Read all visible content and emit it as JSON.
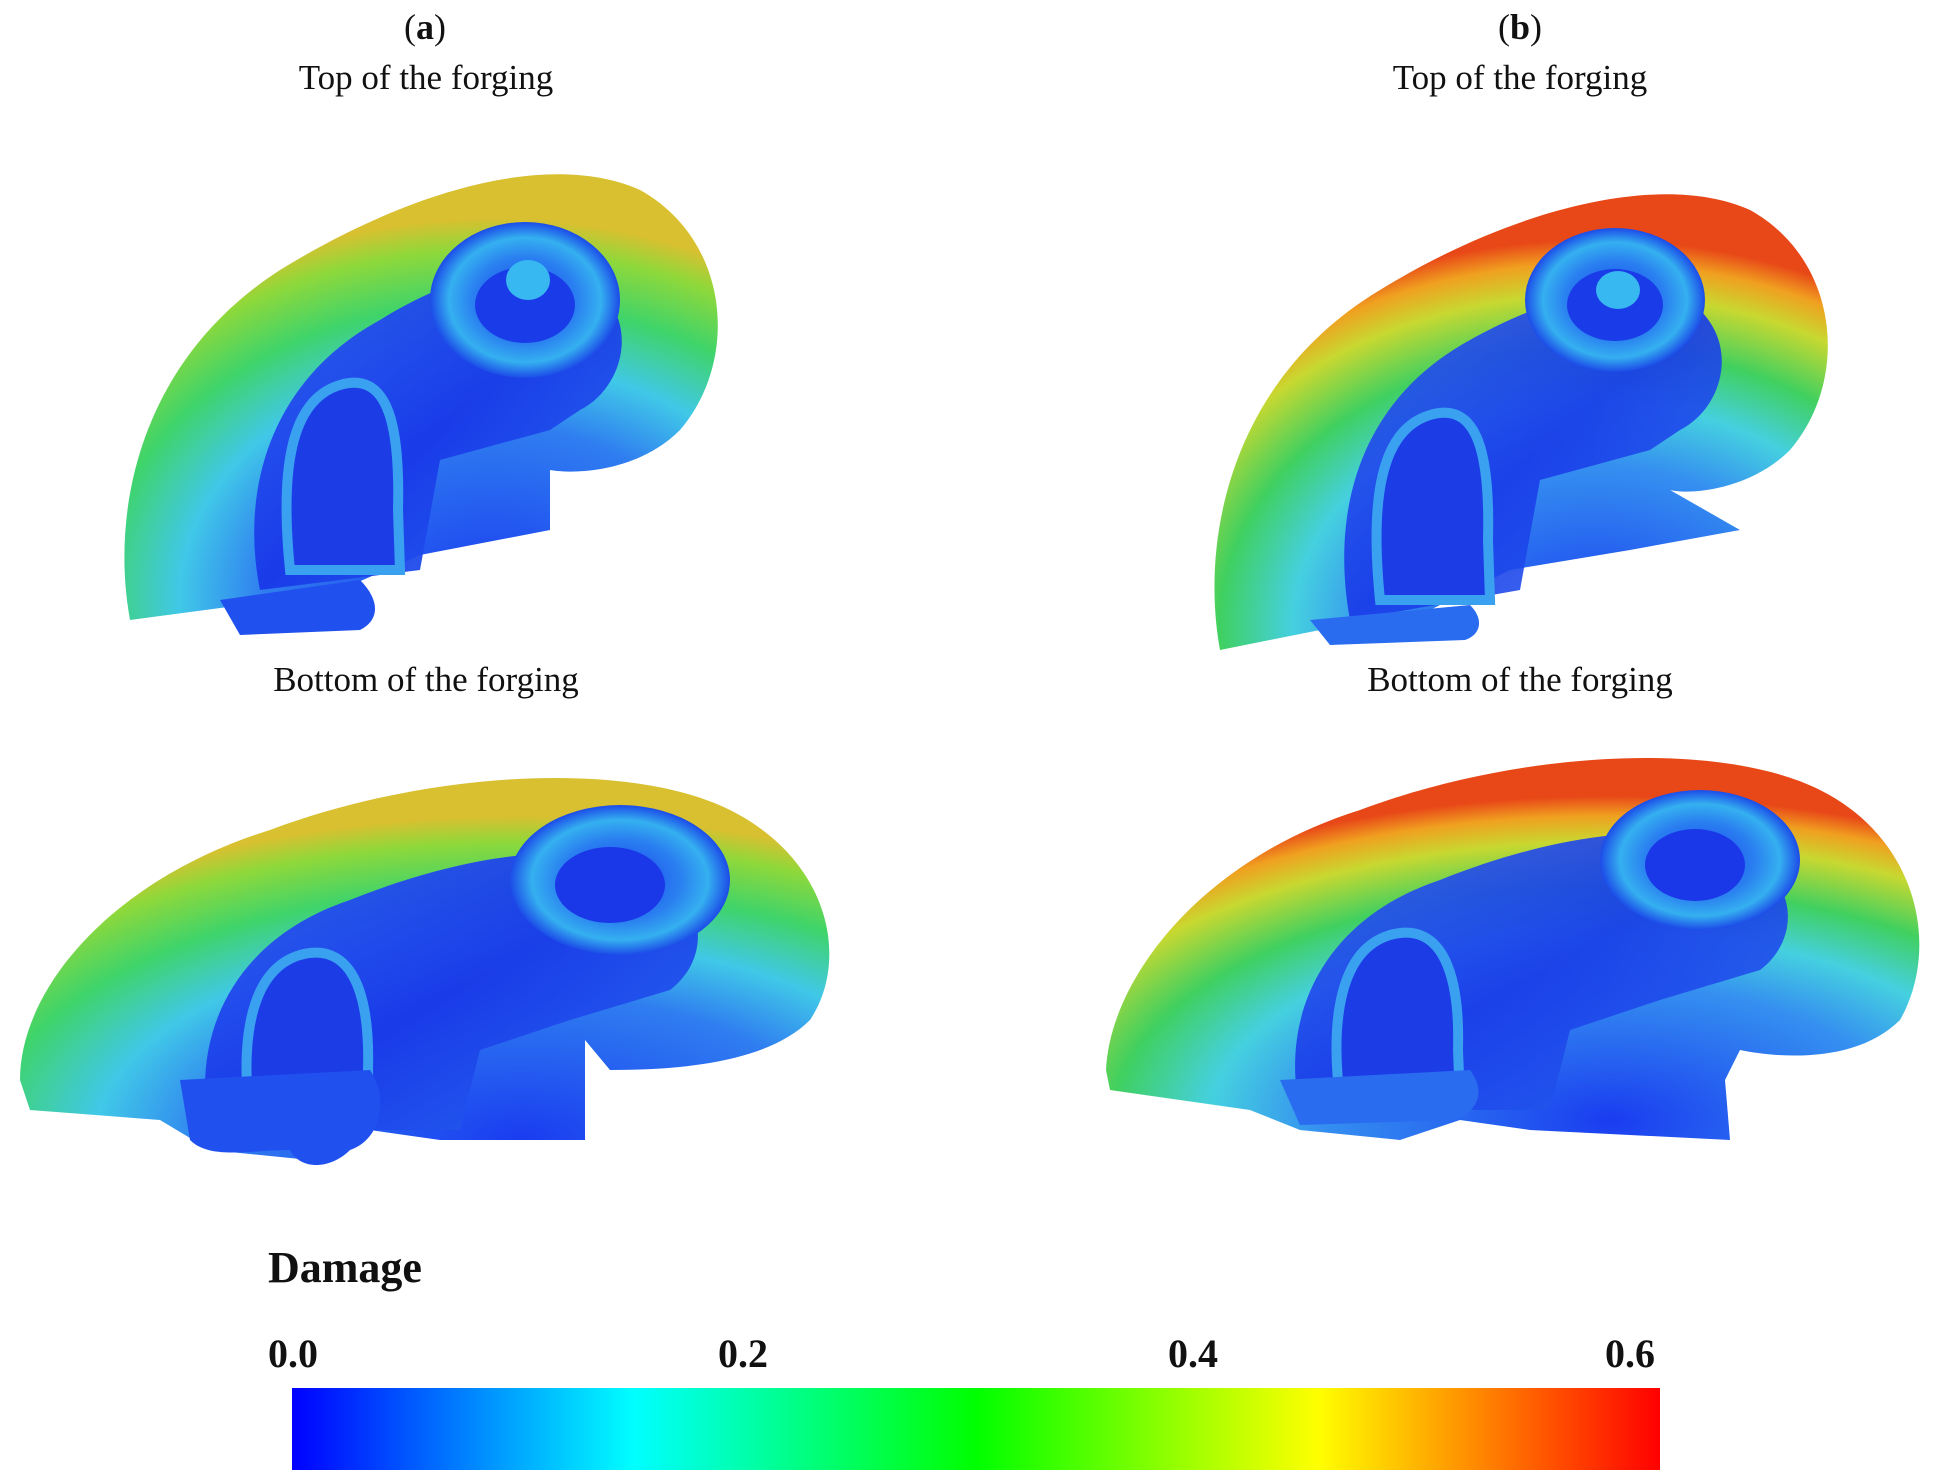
{
  "panels": [
    {
      "label_open": "(",
      "label_letter": "a",
      "label_close": ")",
      "top_caption": "Top of the forging",
      "bottom_caption": "Bottom of the forging"
    },
    {
      "label_open": "(",
      "label_letter": "b",
      "label_close": ")",
      "top_caption": "Top of the forging",
      "bottom_caption": "Bottom of the forging"
    }
  ],
  "legend": {
    "title": "Damage",
    "ticks": [
      "0.0",
      "0.2",
      "0.4",
      "0.6"
    ],
    "range": [
      0.0,
      0.6
    ],
    "colors": [
      "#0000ff",
      "#00ffff",
      "#00ff00",
      "#ffff00",
      "#ff0000"
    ]
  },
  "colors": {
    "low_damage": "#1a3cf0",
    "mid_low": "#35b8f0",
    "mid": "#30d060",
    "high": "#f07020"
  }
}
